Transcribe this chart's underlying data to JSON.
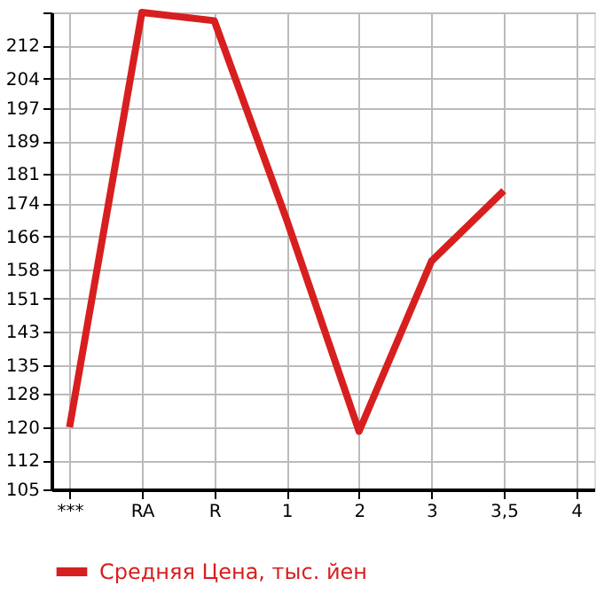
{
  "chart_data": {
    "type": "line",
    "categories": [
      "***",
      "RA",
      "R",
      "1",
      "2",
      "3",
      "3,5",
      "4"
    ],
    "series": [
      {
        "name": "Средняя Цена, тыс. йен",
        "color": "#d71f1f",
        "values": [
          120,
          220,
          218,
          170,
          119,
          160,
          177,
          null
        ]
      }
    ],
    "ylim": [
      105,
      220
    ],
    "yticks": [
      105,
      112,
      120,
      128,
      135,
      143,
      151,
      158,
      166,
      174,
      181,
      189,
      197,
      204,
      212,
      {
        "value": 220,
        "label": null
      }
    ],
    "grid": true,
    "legend": "bottom",
    "marker": "none",
    "line_style": "solid"
  }
}
